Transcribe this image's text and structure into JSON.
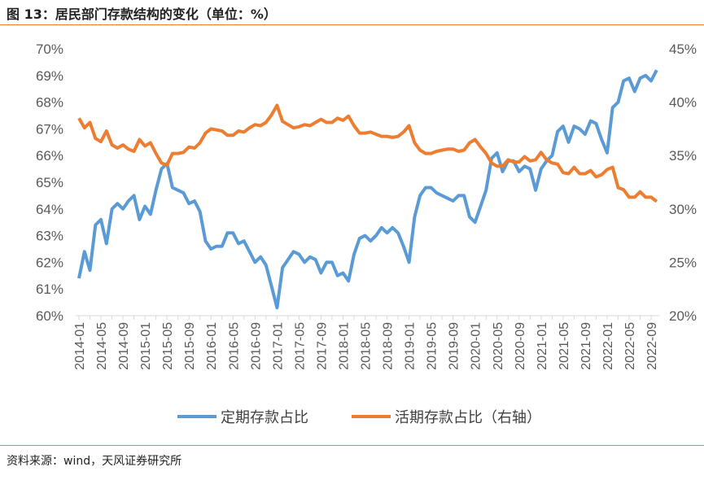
{
  "title": "图 13：居民部门存款结构的变化（单位：%）",
  "source": "资料来源：wind，天风证券研究所",
  "chart_data": {
    "type": "line",
    "title": "居民部门存款结构的变化（单位：%）",
    "start": "2014-01",
    "x_tick_labels": [
      "2014-01",
      "2014-05",
      "2014-09",
      "2015-01",
      "2015-05",
      "2015-09",
      "2016-01",
      "2016-05",
      "2016-09",
      "2017-01",
      "2017-05",
      "2017-09",
      "2018-01",
      "2018-05",
      "2018-09",
      "2019-01",
      "2019-05",
      "2019-09",
      "2020-01",
      "2020-05",
      "2020-09",
      "2021-01",
      "2021-05",
      "2021-09",
      "2022-01",
      "2022-05",
      "2022-09"
    ],
    "y_left": {
      "range": [
        60,
        70
      ],
      "ticks": [
        "60%",
        "61%",
        "62%",
        "63%",
        "64%",
        "65%",
        "66%",
        "67%",
        "68%",
        "69%",
        "70%"
      ]
    },
    "y_right": {
      "range": [
        20,
        45
      ],
      "ticks": [
        "20%",
        "25%",
        "30%",
        "35%",
        "40%",
        "45%"
      ]
    },
    "legend_position": "bottom",
    "series": [
      {
        "name": "定期存款占比",
        "axis": "left",
        "color": "#5b9bd5",
        "values": [
          61.4,
          62.4,
          61.7,
          63.4,
          63.6,
          62.7,
          64.0,
          64.2,
          64.0,
          64.3,
          64.5,
          63.6,
          64.1,
          63.8,
          64.7,
          65.5,
          65.7,
          64.8,
          64.7,
          64.6,
          64.2,
          64.3,
          63.9,
          62.8,
          62.5,
          62.6,
          62.6,
          63.1,
          63.1,
          62.7,
          62.8,
          62.4,
          62.0,
          62.2,
          61.9,
          61.1,
          60.3,
          61.8,
          62.1,
          62.4,
          62.3,
          62.0,
          62.2,
          62.1,
          61.6,
          62.0,
          62.0,
          61.5,
          61.6,
          61.3,
          62.3,
          62.9,
          63.0,
          62.8,
          63.0,
          63.3,
          63.1,
          63.3,
          63.1,
          62.6,
          62.0,
          63.7,
          64.5,
          64.8,
          64.8,
          64.6,
          64.5,
          64.4,
          64.3,
          64.5,
          64.5,
          63.7,
          63.5,
          64.1,
          64.7,
          65.9,
          66.1,
          65.4,
          65.8,
          65.8,
          65.4,
          65.6,
          65.5,
          64.7,
          65.5,
          65.8,
          66.0,
          66.9,
          67.1,
          66.5,
          67.1,
          67.0,
          66.8,
          67.3,
          67.2,
          66.6,
          66.1,
          67.8,
          68.0,
          68.8,
          68.9,
          68.4,
          68.9,
          69.0,
          68.8,
          69.2
        ]
      },
      {
        "name": "活期存款占比（右轴）",
        "axis": "right",
        "color": "#ed7d31",
        "values": [
          38.5,
          37.6,
          38.1,
          36.6,
          36.3,
          37.3,
          36.0,
          35.7,
          36.0,
          35.6,
          35.4,
          36.5,
          35.9,
          36.2,
          35.2,
          34.3,
          34.1,
          35.2,
          35.2,
          35.3,
          35.8,
          35.7,
          36.2,
          37.1,
          37.5,
          37.4,
          37.3,
          36.9,
          36.9,
          37.3,
          37.2,
          37.6,
          37.9,
          37.8,
          38.1,
          38.8,
          39.7,
          38.2,
          37.9,
          37.6,
          37.7,
          37.9,
          37.8,
          38.1,
          38.4,
          38.1,
          38.1,
          38.5,
          38.3,
          38.7,
          37.8,
          37.1,
          37.1,
          37.2,
          37.0,
          36.8,
          36.8,
          36.7,
          36.8,
          37.2,
          37.8,
          36.2,
          35.5,
          35.2,
          35.2,
          35.4,
          35.5,
          35.6,
          35.6,
          35.4,
          35.5,
          36.2,
          36.5,
          35.8,
          35.2,
          34.3,
          34.0,
          34.0,
          34.6,
          34.4,
          34.4,
          34.9,
          34.5,
          34.6,
          35.3,
          34.6,
          34.3,
          34.2,
          33.4,
          33.3,
          33.9,
          33.3,
          33.3,
          33.6,
          33.0,
          33.2,
          33.7,
          33.9,
          32.0,
          31.8,
          31.1,
          31.1,
          31.6,
          31.1,
          31.1,
          30.7
        ]
      }
    ]
  }
}
